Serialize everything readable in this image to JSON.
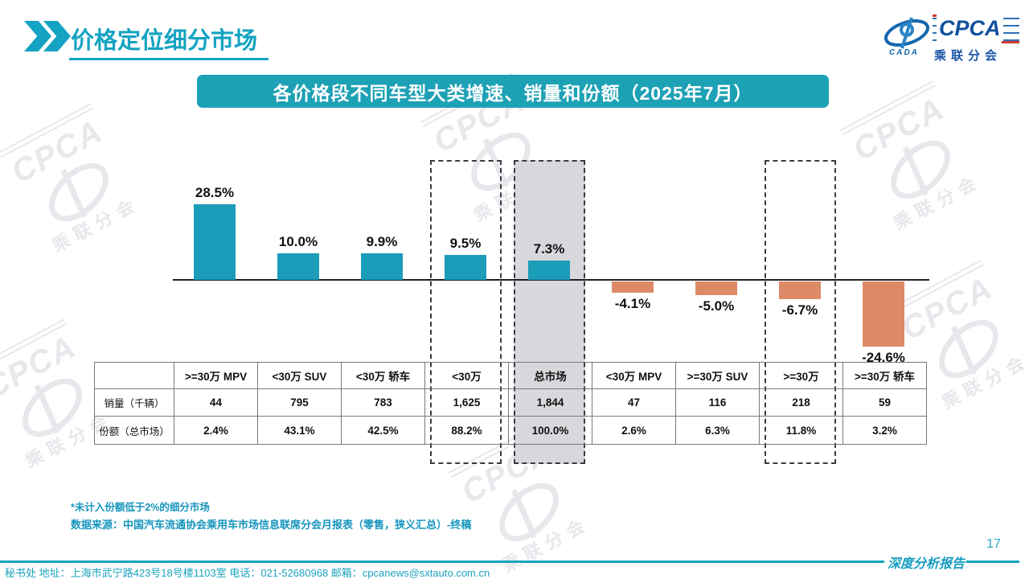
{
  "header": {
    "title": "价格定位细分市场"
  },
  "logo": {
    "cpca": "CPCA",
    "cada": "CADA",
    "sub": "乘联分会"
  },
  "banner": {
    "title": "各价格段不同车型大类增速、销量和份额（2025年7月）"
  },
  "chart_data": {
    "type": "bar",
    "title": "各价格段不同车型大类增速、销量和份额（2025年7月）",
    "categories": [
      ">=30万 MPV",
      "<30万 SUV",
      "<30万 轿车",
      "<30万",
      "总市场",
      "<30万 MPV",
      ">=30万 SUV",
      ">=30万",
      ">=30万 轿车"
    ],
    "series": [
      {
        "name": "增速",
        "values": [
          28.5,
          10.0,
          9.9,
          9.5,
          7.3,
          -4.1,
          -5.0,
          -6.7,
          -24.6
        ]
      }
    ],
    "bar_labels": [
      "28.5%",
      "10.0%",
      "9.9%",
      "9.5%",
      "7.3%",
      "-4.1%",
      "-5.0%",
      "-6.7%",
      "-24.6%"
    ],
    "ylim": [
      -30,
      35
    ],
    "grid": false,
    "legend": "none",
    "highlight": {
      "dashed_column_indices": [
        3,
        4,
        7
      ],
      "shaded_column_index": 4
    },
    "colors": {
      "positive_bar": "#1b9cb8",
      "negative_bar": "#dc8a67",
      "shaded_column": "#d8d8dc",
      "dashed_border": "#3a3a42"
    }
  },
  "table": {
    "corner": "",
    "columns": [
      ">=30万 MPV",
      "<30万 SUV",
      "<30万 轿车",
      "<30万",
      "总市场",
      "<30万 MPV",
      ">=30万 SUV",
      ">=30万",
      ">=30万 轿车"
    ],
    "rows": [
      {
        "label": "销量（千辆）",
        "values": [
          "44",
          "795",
          "783",
          "1,625",
          "1,844",
          "47",
          "116",
          "218",
          "59"
        ]
      },
      {
        "label": "份额（总市场）",
        "values": [
          "2.4%",
          "43.1%",
          "42.5%",
          "88.2%",
          "100.0%",
          "2.6%",
          "6.3%",
          "11.8%",
          "3.2%"
        ]
      }
    ]
  },
  "footnotes": {
    "note1": "*未计入份额低于2%的细分市场",
    "note2": "数据来源：中国汽车流通协会乘用车市场信息联席分会月报表（零售，狭义汇总）-终稿"
  },
  "footer": {
    "address": "秘书处  地址：上海市武宁路423号18号楼1103室  电话：021-52680968   邮箱：cpcanews@sxtauto.com.cn",
    "report_label": "深度分析报告",
    "page_number": "17"
  }
}
